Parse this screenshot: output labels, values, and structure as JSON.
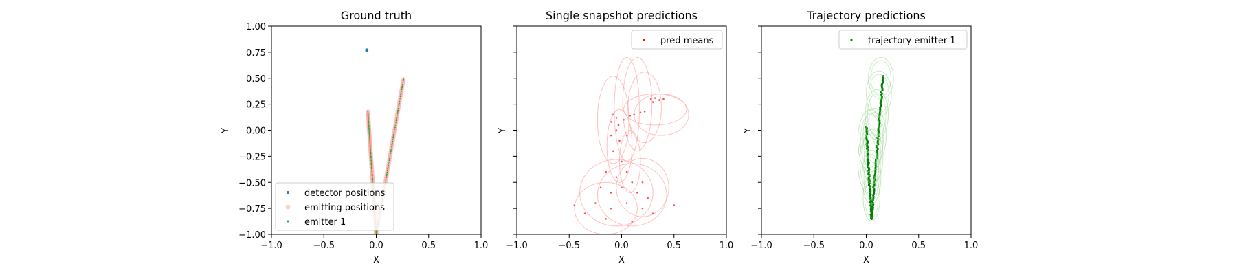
{
  "chart_data": [
    {
      "type": "scatter",
      "title": "Ground truth",
      "xlabel": "X",
      "ylabel": "Y",
      "xlim": [
        -1.0,
        1.0
      ],
      "ylim": [
        -1.0,
        1.0
      ],
      "x_ticks": [
        "−1.0",
        "−0.5",
        "0.0",
        "0.5",
        "1.0"
      ],
      "y_ticks": [
        "1.00",
        "0.75",
        "0.50",
        "0.25",
        "0.00",
        "−0.25",
        "−0.50",
        "−0.75",
        "−1.00"
      ],
      "legend": "lower-left",
      "series": [
        {
          "name": "detector positions",
          "color": "#1f77b4",
          "points": [
            [
              -0.09,
              0.77
            ]
          ]
        },
        {
          "name": "emitting positions",
          "color": "#ff9896",
          "segments": [
            [
              [
                -0.08,
                0.18
              ],
              [
                0.0,
                -1.0
              ]
            ],
            [
              [
                0.26,
                0.49
              ],
              [
                0.0,
                -1.0
              ]
            ]
          ]
        },
        {
          "name": "emitter 1",
          "color": "#2ca02c",
          "segments": [
            [
              [
                -0.08,
                0.18
              ],
              [
                0.0,
                -1.0
              ]
            ],
            [
              [
                0.26,
                0.49
              ],
              [
                0.0,
                -1.0
              ]
            ]
          ]
        }
      ]
    },
    {
      "type": "scatter",
      "title": "Single snapshot predictions",
      "xlabel": "X",
      "ylabel": "Y",
      "xlim": [
        -1.0,
        1.0
      ],
      "ylim": [
        -1.0,
        1.0
      ],
      "x_ticks": [
        "−1.0",
        "−0.5",
        "0.0",
        "0.5",
        "1.0"
      ],
      "legend": "upper-right",
      "series": [
        {
          "name": "pred means",
          "color": "#ff0000",
          "points": [
            [
              -0.08,
              0.15
            ],
            [
              -0.05,
              0.12
            ],
            [
              -0.1,
              0.08
            ],
            [
              -0.03,
              0.05
            ],
            [
              0.02,
              0.1
            ],
            [
              0.08,
              0.14
            ],
            [
              0.12,
              0.15
            ],
            [
              0.18,
              0.17
            ],
            [
              0.22,
              0.18
            ],
            [
              0.28,
              0.3
            ],
            [
              0.32,
              0.31
            ],
            [
              0.36,
              0.29
            ],
            [
              0.3,
              0.27
            ],
            [
              0.4,
              0.3
            ],
            [
              -0.05,
              0.0
            ],
            [
              -0.1,
              -0.05
            ],
            [
              -0.02,
              -0.1
            ],
            [
              0.05,
              -0.05
            ],
            [
              -0.08,
              -0.2
            ],
            [
              0.0,
              -0.3
            ],
            [
              -0.15,
              -0.4
            ],
            [
              -0.05,
              -0.45
            ],
            [
              0.05,
              -0.4
            ],
            [
              0.1,
              -0.5
            ],
            [
              -0.2,
              -0.55
            ],
            [
              -0.1,
              -0.6
            ],
            [
              0.0,
              -0.55
            ],
            [
              0.15,
              -0.6
            ],
            [
              0.2,
              -0.5
            ],
            [
              -0.25,
              -0.7
            ],
            [
              -0.1,
              -0.75
            ],
            [
              0.05,
              -0.7
            ],
            [
              0.2,
              -0.75
            ],
            [
              -0.35,
              -0.8
            ],
            [
              0.3,
              -0.8
            ],
            [
              -0.45,
              -0.72
            ],
            [
              0.5,
              -0.72
            ],
            [
              -0.15,
              -0.85
            ],
            [
              0.1,
              -0.88
            ],
            [
              0.25,
              -0.65
            ]
          ]
        },
        {
          "name": "",
          "color": "#ff9896",
          "ellipses": [
            [
              -0.05,
              -0.6,
              0.35,
              0.32
            ],
            [
              0.1,
              -0.62,
              0.33,
              0.3
            ],
            [
              -0.15,
              -0.75,
              0.3,
              0.25
            ],
            [
              0.2,
              -0.55,
              0.25,
              0.28
            ],
            [
              -0.08,
              0.1,
              0.15,
              0.42
            ],
            [
              0.05,
              0.2,
              0.12,
              0.5
            ],
            [
              0.15,
              0.25,
              0.14,
              0.45
            ],
            [
              0.22,
              0.22,
              0.16,
              0.34
            ],
            [
              0.32,
              0.2,
              0.3,
              0.15
            ],
            [
              0.38,
              0.15,
              0.26,
              0.2
            ],
            [
              -0.02,
              -0.15,
              0.12,
              0.35
            ],
            [
              0.08,
              -0.3,
              0.1,
              0.3
            ]
          ]
        }
      ]
    },
    {
      "type": "scatter",
      "title": "Trajectory predictions",
      "xlabel": "X",
      "ylabel": "Y",
      "xlim": [
        -1.0,
        1.0
      ],
      "ylim": [
        -1.0,
        1.0
      ],
      "x_ticks": [
        "−1.0",
        "−0.5",
        "0.0",
        "0.5",
        "1.0"
      ],
      "legend": "upper-right",
      "series": [
        {
          "name": "trajectory emitter 1",
          "color": "#008000",
          "segments": [
            [
              [
                0.0,
                0.03
              ],
              [
                0.05,
                -0.85
              ]
            ],
            [
              [
                0.16,
                0.52
              ],
              [
                0.05,
                -0.85
              ]
            ]
          ]
        },
        {
          "name": "",
          "color": "#a1d99b",
          "ellipses": [
            [
              0.14,
              0.5,
              0.12,
              0.2
            ],
            [
              0.12,
              0.35,
              0.12,
              0.22
            ],
            [
              0.1,
              0.15,
              0.11,
              0.24
            ],
            [
              0.08,
              -0.05,
              0.11,
              0.26
            ],
            [
              0.06,
              -0.25,
              0.1,
              0.26
            ],
            [
              0.05,
              -0.45,
              0.09,
              0.26
            ],
            [
              0.05,
              -0.65,
              0.08,
              0.22
            ],
            [
              0.04,
              -0.1,
              0.12,
              0.3
            ],
            [
              0.02,
              -0.3,
              0.1,
              0.3
            ]
          ]
        }
      ]
    }
  ]
}
